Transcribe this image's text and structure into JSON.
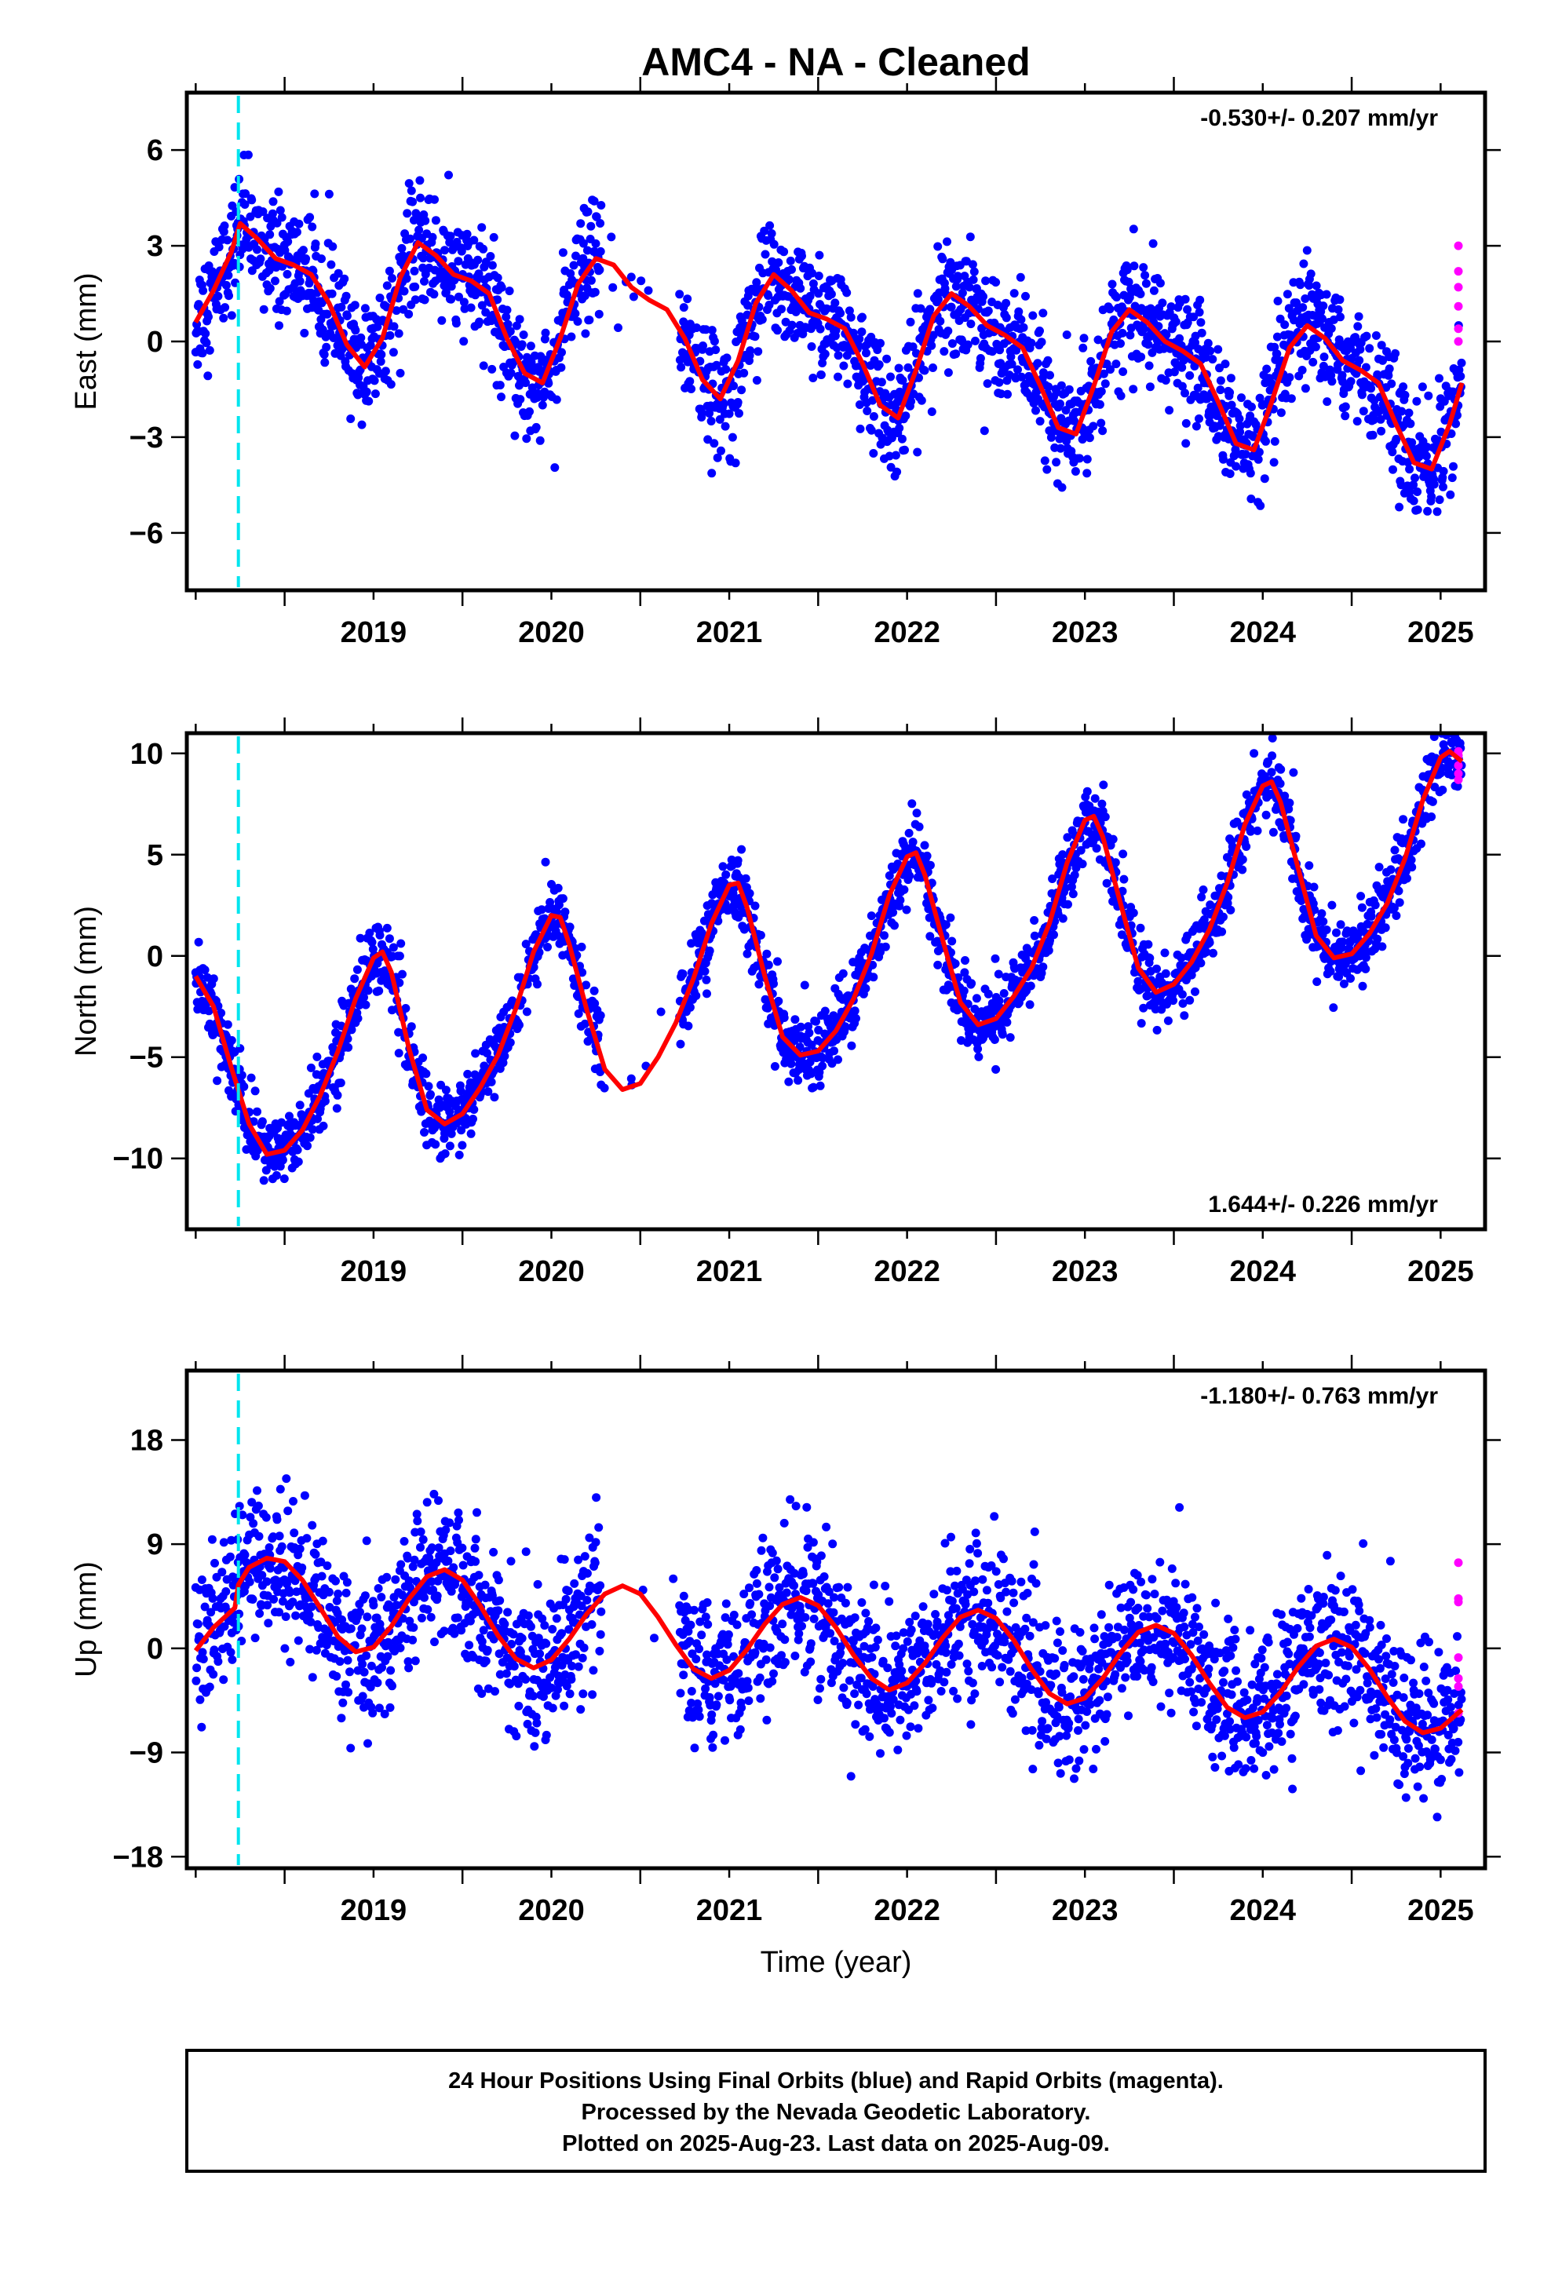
{
  "chart_data": {
    "title": "AMC4  - NA - Cleaned",
    "type": "scatter",
    "x_range": [
      2018.45,
      2025.75
    ],
    "x_ticks": [
      2019,
      2020,
      2021,
      2022,
      2023,
      2024,
      2025
    ],
    "xlabel": "Time (year)",
    "event_line_x": 2018.74,
    "colors": {
      "final": "#0000ff",
      "rapid": "#ff00ff",
      "fit": "#ff0000",
      "event": "#00e5ee"
    },
    "panels": [
      {
        "id": "east",
        "ylabel": "East (mm)",
        "ylim": [
          -7.8,
          7.8
        ],
        "y_ticks": [
          6,
          3,
          0,
          -3,
          -6
        ],
        "rate_text": "-0.530+/- 0.207 mm/yr",
        "rate_position": "top-right",
        "fit": [
          [
            2018.5,
            0.6
          ],
          [
            2018.6,
            1.6
          ],
          [
            2018.7,
            2.8
          ],
          [
            2018.75,
            3.7
          ],
          [
            2018.85,
            3.2
          ],
          [
            2018.95,
            2.6
          ],
          [
            2019.05,
            2.4
          ],
          [
            2019.15,
            2.1
          ],
          [
            2019.25,
            1.2
          ],
          [
            2019.35,
            -0.1
          ],
          [
            2019.45,
            -0.8
          ],
          [
            2019.55,
            0.1
          ],
          [
            2019.65,
            2.0
          ],
          [
            2019.75,
            3.1
          ],
          [
            2019.85,
            2.7
          ],
          [
            2019.95,
            2.1
          ],
          [
            2020.05,
            1.9
          ],
          [
            2020.15,
            1.5
          ],
          [
            2020.25,
            0.1
          ],
          [
            2020.35,
            -1.0
          ],
          [
            2020.45,
            -1.3
          ],
          [
            2020.55,
            0.1
          ],
          [
            2020.65,
            1.8
          ],
          [
            2020.75,
            2.6
          ],
          [
            2020.85,
            2.4
          ],
          [
            2020.95,
            1.7
          ],
          [
            2021.05,
            1.3
          ],
          [
            2021.15,
            1.0
          ],
          [
            2021.25,
            0.1
          ],
          [
            2021.35,
            -1.2
          ],
          [
            2021.45,
            -1.8
          ],
          [
            2021.55,
            -0.6
          ],
          [
            2021.65,
            1.2
          ],
          [
            2021.75,
            2.1
          ],
          [
            2021.85,
            1.6
          ],
          [
            2021.95,
            0.9
          ],
          [
            2022.05,
            0.7
          ],
          [
            2022.15,
            0.4
          ],
          [
            2022.25,
            -0.7
          ],
          [
            2022.35,
            -2.0
          ],
          [
            2022.45,
            -2.4
          ],
          [
            2022.55,
            -0.9
          ],
          [
            2022.65,
            0.8
          ],
          [
            2022.75,
            1.5
          ],
          [
            2022.85,
            1.1
          ],
          [
            2022.95,
            0.5
          ],
          [
            2023.05,
            0.2
          ],
          [
            2023.15,
            -0.2
          ],
          [
            2023.25,
            -1.4
          ],
          [
            2023.35,
            -2.7
          ],
          [
            2023.45,
            -2.9
          ],
          [
            2023.55,
            -1.4
          ],
          [
            2023.65,
            0.3
          ],
          [
            2023.75,
            1.0
          ],
          [
            2023.85,
            0.6
          ],
          [
            2023.95,
            0.0
          ],
          [
            2024.05,
            -0.3
          ],
          [
            2024.15,
            -0.7
          ],
          [
            2024.25,
            -1.9
          ],
          [
            2024.35,
            -3.2
          ],
          [
            2024.45,
            -3.4
          ],
          [
            2024.55,
            -1.9
          ],
          [
            2024.65,
            -0.2
          ],
          [
            2024.75,
            0.5
          ],
          [
            2024.85,
            0.1
          ],
          [
            2024.95,
            -0.6
          ],
          [
            2025.05,
            -0.9
          ],
          [
            2025.15,
            -1.3
          ],
          [
            2025.25,
            -2.6
          ],
          [
            2025.35,
            -3.8
          ],
          [
            2025.45,
            -4.0
          ],
          [
            2025.55,
            -2.6
          ],
          [
            2025.62,
            -1.3
          ]
        ],
        "rapid_points": [
          [
            2025.6,
            3.0
          ],
          [
            2025.6,
            2.2
          ],
          [
            2025.6,
            1.7
          ],
          [
            2025.6,
            1.1
          ],
          [
            2025.6,
            0.4
          ],
          [
            2025.6,
            0.0
          ]
        ]
      },
      {
        "id": "north",
        "ylabel": "North (mm)",
        "ylim": [
          -13.5,
          11.0
        ],
        "y_ticks": [
          10,
          5,
          0,
          -5,
          -10
        ],
        "rate_text": "1.644+/- 0.226 mm/yr",
        "rate_position": "bottom-right",
        "fit": [
          [
            2018.5,
            -1.0
          ],
          [
            2018.6,
            -2.5
          ],
          [
            2018.7,
            -5.5
          ],
          [
            2018.8,
            -8.3
          ],
          [
            2018.9,
            -9.8
          ],
          [
            2019.0,
            -9.6
          ],
          [
            2019.1,
            -8.6
          ],
          [
            2019.2,
            -6.9
          ],
          [
            2019.3,
            -4.7
          ],
          [
            2019.4,
            -2.1
          ],
          [
            2019.5,
            -0.1
          ],
          [
            2019.55,
            0.2
          ],
          [
            2019.6,
            -0.8
          ],
          [
            2019.7,
            -4.6
          ],
          [
            2019.8,
            -7.6
          ],
          [
            2019.9,
            -8.3
          ],
          [
            2020.0,
            -7.8
          ],
          [
            2020.1,
            -6.5
          ],
          [
            2020.2,
            -4.9
          ],
          [
            2020.3,
            -2.6
          ],
          [
            2020.4,
            0.2
          ],
          [
            2020.5,
            2.0
          ],
          [
            2020.55,
            1.9
          ],
          [
            2020.6,
            0.6
          ],
          [
            2020.7,
            -2.7
          ],
          [
            2020.8,
            -5.6
          ],
          [
            2020.9,
            -6.6
          ],
          [
            2021.0,
            -6.3
          ],
          [
            2021.1,
            -5.0
          ],
          [
            2021.2,
            -3.3
          ],
          [
            2021.3,
            -1.1
          ],
          [
            2021.4,
            1.6
          ],
          [
            2021.5,
            3.5
          ],
          [
            2021.55,
            3.6
          ],
          [
            2021.6,
            2.4
          ],
          [
            2021.7,
            -1.0
          ],
          [
            2021.8,
            -4.0
          ],
          [
            2021.9,
            -4.9
          ],
          [
            2022.0,
            -4.7
          ],
          [
            2022.1,
            -3.7
          ],
          [
            2022.2,
            -2.1
          ],
          [
            2022.3,
            0.1
          ],
          [
            2022.4,
            3.0
          ],
          [
            2022.5,
            4.9
          ],
          [
            2022.55,
            5.1
          ],
          [
            2022.6,
            4.0
          ],
          [
            2022.7,
            0.8
          ],
          [
            2022.8,
            -2.3
          ],
          [
            2022.9,
            -3.4
          ],
          [
            2023.0,
            -3.1
          ],
          [
            2023.1,
            -2.0
          ],
          [
            2023.2,
            -0.6
          ],
          [
            2023.3,
            1.6
          ],
          [
            2023.4,
            4.6
          ],
          [
            2023.5,
            6.7
          ],
          [
            2023.55,
            6.9
          ],
          [
            2023.6,
            5.9
          ],
          [
            2023.7,
            2.6
          ],
          [
            2023.8,
            -0.6
          ],
          [
            2023.9,
            -1.8
          ],
          [
            2024.0,
            -1.4
          ],
          [
            2024.1,
            -0.3
          ],
          [
            2024.2,
            1.3
          ],
          [
            2024.3,
            3.6
          ],
          [
            2024.4,
            6.5
          ],
          [
            2024.5,
            8.4
          ],
          [
            2024.55,
            8.6
          ],
          [
            2024.6,
            7.6
          ],
          [
            2024.7,
            4.3
          ],
          [
            2024.8,
            1.0
          ],
          [
            2024.9,
            -0.1
          ],
          [
            2025.0,
            0.1
          ],
          [
            2025.1,
            1.1
          ],
          [
            2025.2,
            2.6
          ],
          [
            2025.3,
            4.8
          ],
          [
            2025.4,
            7.7
          ],
          [
            2025.5,
            9.8
          ],
          [
            2025.55,
            10.1
          ],
          [
            2025.62,
            9.6
          ]
        ],
        "rapid_points": [
          [
            2025.6,
            9.9
          ],
          [
            2025.6,
            9.4
          ],
          [
            2025.6,
            9.0
          ],
          [
            2025.6,
            8.7
          ],
          [
            2025.6,
            10.1
          ]
        ]
      },
      {
        "id": "up",
        "ylabel": "Up (mm)",
        "ylim": [
          -19.0,
          24.0
        ],
        "y_ticks": [
          18,
          9,
          0,
          -9,
          -18
        ],
        "rate_text": "-1.180+/- 0.763 mm/yr",
        "rate_position": "top-right",
        "fit": [
          [
            2018.5,
            -0.2
          ],
          [
            2018.6,
            1.8
          ],
          [
            2018.72,
            3.5
          ],
          [
            2018.74,
            5.5
          ],
          [
            2018.8,
            7.0
          ],
          [
            2018.9,
            7.8
          ],
          [
            2019.0,
            7.5
          ],
          [
            2019.1,
            5.9
          ],
          [
            2019.2,
            3.5
          ],
          [
            2019.3,
            1.0
          ],
          [
            2019.4,
            -0.3
          ],
          [
            2019.5,
            0.1
          ],
          [
            2019.6,
            1.9
          ],
          [
            2019.7,
            4.3
          ],
          [
            2019.8,
            6.2
          ],
          [
            2019.9,
            6.8
          ],
          [
            2020.0,
            5.9
          ],
          [
            2020.1,
            3.7
          ],
          [
            2020.2,
            1.1
          ],
          [
            2020.3,
            -0.9
          ],
          [
            2020.4,
            -1.7
          ],
          [
            2020.5,
            -1.0
          ],
          [
            2020.6,
            0.8
          ],
          [
            2020.7,
            3.0
          ],
          [
            2020.8,
            4.7
          ],
          [
            2020.9,
            5.4
          ],
          [
            2021.0,
            4.7
          ],
          [
            2021.1,
            2.7
          ],
          [
            2021.2,
            0.3
          ],
          [
            2021.3,
            -1.8
          ],
          [
            2021.4,
            -2.6
          ],
          [
            2021.5,
            -1.9
          ],
          [
            2021.6,
            -0.1
          ],
          [
            2021.7,
            2.1
          ],
          [
            2021.8,
            3.8
          ],
          [
            2021.9,
            4.4
          ],
          [
            2022.0,
            3.7
          ],
          [
            2022.1,
            1.8
          ],
          [
            2022.2,
            -0.6
          ],
          [
            2022.3,
            -2.6
          ],
          [
            2022.4,
            -3.6
          ],
          [
            2022.5,
            -3.0
          ],
          [
            2022.6,
            -1.3
          ],
          [
            2022.7,
            0.9
          ],
          [
            2022.8,
            2.7
          ],
          [
            2022.9,
            3.3
          ],
          [
            2023.0,
            2.6
          ],
          [
            2023.1,
            0.7
          ],
          [
            2023.2,
            -1.8
          ],
          [
            2023.3,
            -3.9
          ],
          [
            2023.4,
            -4.8
          ],
          [
            2023.5,
            -4.3
          ],
          [
            2023.6,
            -2.6
          ],
          [
            2023.7,
            -0.4
          ],
          [
            2023.8,
            1.4
          ],
          [
            2023.9,
            2.0
          ],
          [
            2024.0,
            1.3
          ],
          [
            2024.1,
            -0.6
          ],
          [
            2024.2,
            -3.0
          ],
          [
            2024.3,
            -5.1
          ],
          [
            2024.4,
            -6.0
          ],
          [
            2024.5,
            -5.5
          ],
          [
            2024.6,
            -3.8
          ],
          [
            2024.7,
            -1.6
          ],
          [
            2024.8,
            0.2
          ],
          [
            2024.9,
            0.8
          ],
          [
            2025.0,
            0.1
          ],
          [
            2025.1,
            -1.8
          ],
          [
            2025.2,
            -4.2
          ],
          [
            2025.3,
            -6.3
          ],
          [
            2025.4,
            -7.3
          ],
          [
            2025.5,
            -6.9
          ],
          [
            2025.62,
            -5.3
          ]
        ],
        "rapid_points": [
          [
            2025.6,
            7.4
          ],
          [
            2025.6,
            4.3
          ],
          [
            2025.6,
            4.0
          ],
          [
            2025.6,
            -0.8
          ],
          [
            2025.6,
            -2.6
          ],
          [
            2025.6,
            -3.3
          ],
          [
            2025.6,
            -5.6
          ]
        ]
      }
    ]
  },
  "caption": {
    "line1": "24 Hour Positions Using Final Orbits (blue) and Rapid Orbits (magenta).",
    "line2": "Processed by the Nevada Geodetic Laboratory.",
    "line3": "Plotted on 2025-Aug-23. Last data on 2025-Aug-09."
  }
}
